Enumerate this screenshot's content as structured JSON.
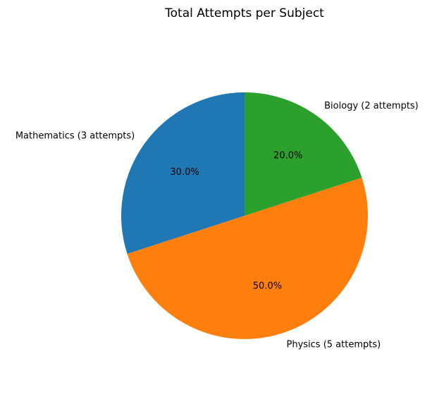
{
  "chart_data": {
    "type": "pie",
    "title": "Total Attempts per Subject",
    "start_angle_deg": 90,
    "direction": "counterclockwise",
    "slices": [
      {
        "label": "Mathematics (3 attempts)",
        "value": 3,
        "pct_label": "30.0%",
        "color": "#1f77b4"
      },
      {
        "label": "Physics (5 attempts)",
        "value": 5,
        "pct_label": "50.0%",
        "color": "#ff7f0e"
      },
      {
        "label": "Biology (2 attempts)",
        "value": 2,
        "pct_label": "20.0%",
        "color": "#2ca02c"
      }
    ]
  }
}
